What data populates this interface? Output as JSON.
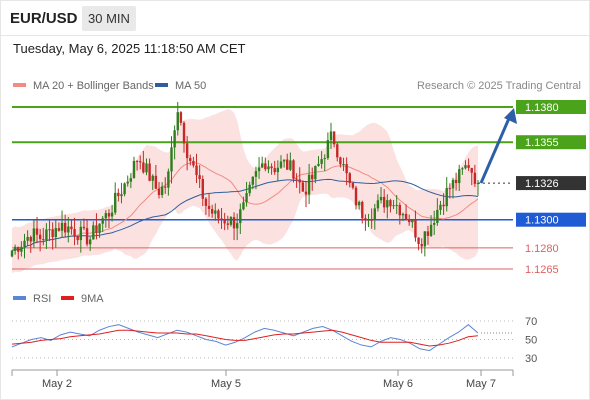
{
  "header": {
    "symbol": "EUR/USD",
    "timeframe": "30 MIN",
    "datetime": "Tuesday, May 6, 2025 11:18:50 AM CET",
    "copyright": "Research © 2025 Trading Central"
  },
  "legend": [
    {
      "label": "MA 20 + Bollinger Bands",
      "color": "#f28b82"
    },
    {
      "label": "MA 50",
      "color": "#2f5e9e"
    }
  ],
  "rsi_legend": [
    {
      "label": "RSI",
      "color": "#5b86d6"
    },
    {
      "label": "9MA",
      "color": "#e02020"
    }
  ],
  "colors": {
    "up": "#2e7d1e",
    "down": "#c62828",
    "resistance": "#4aa31a",
    "support": "#1f5bd4",
    "minor_support": "#e06060",
    "current": "#333333",
    "arrow": "#2d5fa8"
  },
  "chart_data": [
    {
      "type": "candlestick",
      "ylim": [
        1.1225,
        1.1395
      ],
      "x_ticks": [
        "May 2",
        "May 5",
        "May 6",
        "May 7"
      ],
      "levels": [
        {
          "value": 1.138,
          "label": "1.1380",
          "kind": "resistance"
        },
        {
          "value": 1.1355,
          "label": "1.1355",
          "kind": "resistance"
        },
        {
          "value": 1.1326,
          "label": "1.1326",
          "kind": "current"
        },
        {
          "value": 1.13,
          "label": "1.1300",
          "kind": "support"
        },
        {
          "value": 1.128,
          "label": "1.1280",
          "kind": "minor_support"
        },
        {
          "value": 1.1265,
          "label": "1.1265",
          "kind": "minor_support"
        }
      ],
      "series": [
        {
          "name": "MA 20 + Bollinger Bands"
        },
        {
          "name": "MA 50"
        }
      ],
      "price_path": [
        1.1278,
        1.1284,
        1.129,
        1.1287,
        1.1292,
        1.1296,
        1.1294,
        1.129,
        1.1286,
        1.1298,
        1.1305,
        1.1318,
        1.133,
        1.1345,
        1.1333,
        1.132,
        1.1325,
        1.1382,
        1.135,
        1.133,
        1.131,
        1.1302,
        1.13,
        1.1298,
        1.131,
        1.133,
        1.1342,
        1.1337,
        1.134,
        1.1335,
        1.132,
        1.133,
        1.1345,
        1.136,
        1.134,
        1.132,
        1.1305,
        1.1305,
        1.1312,
        1.1315,
        1.1308,
        1.13,
        1.1285,
        1.1295,
        1.131,
        1.1322,
        1.133,
        1.134,
        1.1326
      ]
    },
    {
      "type": "line",
      "title": "RSI",
      "ylim": [
        20,
        80
      ],
      "y_ticks": [
        70,
        50,
        30
      ],
      "series": [
        {
          "name": "RSI",
          "values": [
            42,
            46,
            50,
            52,
            49,
            55,
            58,
            56,
            54,
            60,
            64,
            66,
            62,
            58,
            55,
            52,
            56,
            60,
            58,
            54,
            50,
            48,
            44,
            47,
            52,
            58,
            62,
            60,
            57,
            54,
            58,
            62,
            64,
            60,
            54,
            48,
            44,
            42,
            48,
            52,
            50,
            46,
            40,
            38,
            45,
            52,
            58,
            66,
            57
          ]
        },
        {
          "name": "9MA",
          "values": [
            45,
            46,
            47,
            49,
            50,
            51,
            53,
            54,
            55,
            56,
            58,
            60,
            60,
            59,
            58,
            57,
            57,
            57,
            56,
            56,
            54,
            52,
            50,
            49,
            49,
            51,
            53,
            55,
            56,
            56,
            57,
            58,
            59,
            60,
            58,
            55,
            52,
            49,
            47,
            47,
            47,
            47,
            45,
            43,
            44,
            46,
            49,
            53,
            54
          ]
        }
      ]
    }
  ]
}
